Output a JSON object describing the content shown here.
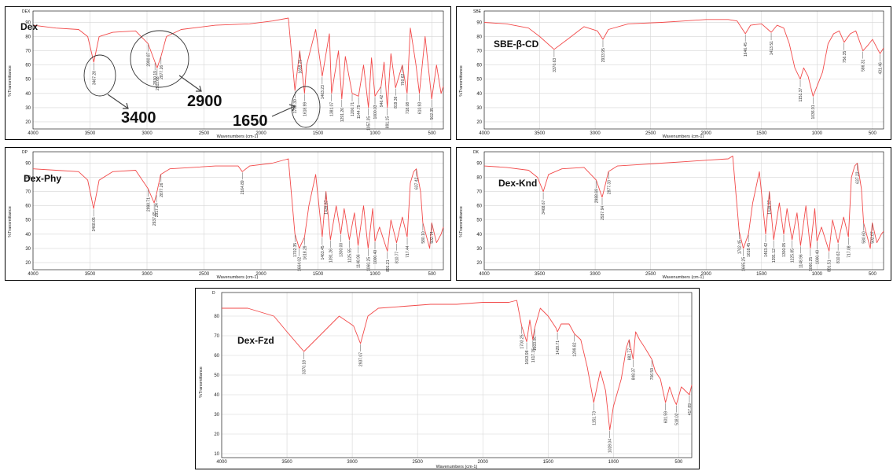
{
  "colors": {
    "spectrum": "#f24a4a",
    "frame": "#000000",
    "grid": "#d6d6d6"
  },
  "chart_data": [
    {
      "type": "line",
      "name": "Dex",
      "corner_label": "DEX",
      "xlabel": "Wavenumbers (cm-1)",
      "ylabel": "%Transmittance",
      "xlim": [
        4000,
        400
      ],
      "ylim": [
        15,
        98
      ],
      "x_reversed": true,
      "xticks": [
        "4000",
        "3500",
        "3000",
        "2500",
        "2000",
        "1500",
        "1000",
        "500"
      ],
      "yticks": [
        "90",
        "80",
        "70",
        "60",
        "50",
        "40",
        "30",
        "20"
      ],
      "grid": true,
      "x": [
        4000,
        3800,
        3600,
        3520,
        3467,
        3420,
        3300,
        3100,
        2990,
        2930,
        2911,
        2877,
        2830,
        2700,
        2400,
        2100,
        1900,
        1760,
        1702,
        1660,
        1618,
        1600,
        1520,
        1463,
        1400,
        1381,
        1320,
        1291,
        1260,
        1200,
        1144,
        1100,
        1057,
        1030,
        1000,
        946,
        920,
        892,
        860,
        819,
        760,
        718,
        690,
        640,
        610,
        560,
        502,
        460,
        420,
        400
      ],
      "y": [
        88,
        86,
        85,
        80,
        62,
        80,
        83,
        84,
        75,
        62,
        58,
        66,
        80,
        85,
        88,
        89,
        91,
        93,
        42,
        70,
        40,
        60,
        85,
        52,
        82,
        40,
        70,
        36,
        66,
        40,
        38,
        60,
        30,
        65,
        38,
        45,
        62,
        30,
        68,
        44,
        60,
        40,
        86,
        60,
        40,
        80,
        36,
        60,
        40,
        45
      ],
      "peaks": [
        {
          "x": 3467,
          "label": "3467.28"
        },
        {
          "x": 2990,
          "label": "2990.87"
        },
        {
          "x": 2930,
          "label": "2930.19"
        },
        {
          "x": 2911,
          "label": "2911.68"
        },
        {
          "x": 2877,
          "label": "2877.26"
        },
        {
          "x": 1702,
          "label": "1702.30"
        },
        {
          "x": 1660,
          "label": "1659.25"
        },
        {
          "x": 1618,
          "label": "1618.99"
        },
        {
          "x": 1463,
          "label": "1463.23"
        },
        {
          "x": 1381,
          "label": "1381.07"
        },
        {
          "x": 1291,
          "label": "1291.26"
        },
        {
          "x": 1200,
          "label": "1200.71"
        },
        {
          "x": 1144,
          "label": "1144.79"
        },
        {
          "x": 1057,
          "label": "1057.35"
        },
        {
          "x": 1000,
          "label": "1000.03"
        },
        {
          "x": 946,
          "label": "946.42"
        },
        {
          "x": 892,
          "label": "891.15"
        },
        {
          "x": 819,
          "label": "819.36"
        },
        {
          "x": 760,
          "label": "760.62"
        },
        {
          "x": 718,
          "label": "718.08"
        },
        {
          "x": 610,
          "label": "610.93"
        },
        {
          "x": 502,
          "label": "502.35"
        }
      ],
      "annotations": [
        "3400",
        "2900",
        "1650"
      ]
    },
    {
      "type": "line",
      "name": "SBE-β-CD",
      "corner_label": "SBE",
      "xlabel": "Wavenumbers (cm-1)",
      "ylabel": "%Transmittance",
      "xlim": [
        4000,
        400
      ],
      "ylim": [
        15,
        98
      ],
      "x_reversed": true,
      "xticks": [
        "4000",
        "3500",
        "3000",
        "2500",
        "2000",
        "1500",
        "1000",
        "500"
      ],
      "yticks": [
        "90",
        "80",
        "70",
        "60",
        "50",
        "40",
        "30",
        "20"
      ],
      "grid": true,
      "x": [
        4000,
        3800,
        3600,
        3500,
        3370,
        3250,
        3100,
        2980,
        2930,
        2880,
        2700,
        2400,
        2200,
        2000,
        1800,
        1720,
        1646,
        1600,
        1500,
        1413,
        1360,
        1300,
        1250,
        1200,
        1151,
        1120,
        1080,
        1036,
        1000,
        950,
        900,
        850,
        800,
        756,
        700,
        650,
        586,
        540,
        500,
        432,
        400
      ],
      "y": [
        90,
        89,
        86,
        80,
        71,
        78,
        87,
        84,
        78,
        85,
        89,
        90,
        91,
        92,
        92,
        91,
        82,
        88,
        89,
        83,
        88,
        86,
        75,
        58,
        50,
        58,
        52,
        38,
        45,
        55,
        75,
        82,
        84,
        76,
        82,
        84,
        70,
        74,
        78,
        68,
        72
      ],
      "peaks": [
        {
          "x": 3370,
          "label": "3370.63"
        },
        {
          "x": 2930,
          "label": "2933.95"
        },
        {
          "x": 1646,
          "label": "1646.45"
        },
        {
          "x": 1413,
          "label": "1413.51"
        },
        {
          "x": 1151,
          "label": "1151.37"
        },
        {
          "x": 1036,
          "label": "1036.91"
        },
        {
          "x": 756,
          "label": "756.35"
        },
        {
          "x": 586,
          "label": "586.31"
        },
        {
          "x": 432,
          "label": "431.46"
        }
      ]
    },
    {
      "type": "line",
      "name": "Dex-Phy",
      "corner_label": "DP",
      "xlabel": "Wavenumbers (cm-1)",
      "ylabel": "%Transmittance",
      "xlim": [
        4000,
        400
      ],
      "ylim": [
        15,
        98
      ],
      "x_reversed": true,
      "xticks": [
        "4000",
        "3500",
        "3000",
        "2500",
        "2000",
        "1500",
        "1000",
        "500"
      ],
      "yticks": [
        "90",
        "80",
        "70",
        "60",
        "50",
        "40",
        "30",
        "20"
      ],
      "grid": true,
      "x": [
        4000,
        3800,
        3600,
        3520,
        3468,
        3420,
        3300,
        3100,
        2990,
        2937,
        2917,
        2880,
        2800,
        2600,
        2400,
        2200,
        2164,
        2100,
        1900,
        1760,
        1702,
        1664,
        1618,
        1580,
        1520,
        1463,
        1430,
        1391,
        1340,
        1300,
        1270,
        1225,
        1180,
        1148,
        1100,
        1060,
        1020,
        1000,
        960,
        891,
        860,
        810,
        760,
        717,
        690,
        660,
        637,
        600,
        580,
        520,
        502,
        460,
        420,
        400
      ],
      "y": [
        86,
        85,
        84,
        78,
        58,
        78,
        84,
        85,
        72,
        62,
        68,
        82,
        86,
        87,
        88,
        88,
        84,
        88,
        90,
        93,
        40,
        30,
        38,
        60,
        82,
        38,
        70,
        36,
        60,
        40,
        58,
        36,
        55,
        32,
        60,
        30,
        58,
        35,
        45,
        28,
        50,
        34,
        52,
        38,
        76,
        84,
        86,
        70,
        48,
        30,
        48,
        34,
        40,
        45
      ],
      "peaks": [
        {
          "x": 3468,
          "label": "3468.05"
        },
        {
          "x": 2990,
          "label": "2990.71"
        },
        {
          "x": 2937,
          "label": "2937.65"
        },
        {
          "x": 2917,
          "label": "2917.24"
        },
        {
          "x": 2877,
          "label": "2877.26"
        },
        {
          "x": 2164,
          "label": "2164.89"
        },
        {
          "x": 1702,
          "label": "1702.35"
        },
        {
          "x": 1664,
          "label": "1664.02"
        },
        {
          "x": 1618,
          "label": "1618.29"
        },
        {
          "x": 1463,
          "label": "1463.45"
        },
        {
          "x": 1430,
          "label": "1439.87"
        },
        {
          "x": 1391,
          "label": "1391.26"
        },
        {
          "x": 1300,
          "label": "1300.00"
        },
        {
          "x": 1225,
          "label": "1225.55"
        },
        {
          "x": 1148,
          "label": "1148.96"
        },
        {
          "x": 1060,
          "label": "1060.25"
        },
        {
          "x": 1000,
          "label": "1000.40"
        },
        {
          "x": 891,
          "label": "891.21"
        },
        {
          "x": 810,
          "label": "810.77"
        },
        {
          "x": 717,
          "label": "717.44"
        },
        {
          "x": 637,
          "label": "637.42"
        },
        {
          "x": 580,
          "label": "580.10"
        },
        {
          "x": 502,
          "label": "502.74"
        }
      ]
    },
    {
      "type": "line",
      "name": "Dex-Knd",
      "corner_label": "DK",
      "xlabel": "Wavenumbers (cm-1)",
      "ylabel": "%Transmittance",
      "xlim": [
        4000,
        400
      ],
      "ylim": [
        15,
        98
      ],
      "x_reversed": true,
      "xticks": [
        "4000",
        "3500",
        "3000",
        "2500",
        "2000",
        "1500",
        "1000",
        "500"
      ],
      "yticks": [
        "90",
        "80",
        "70",
        "60",
        "50",
        "40",
        "30",
        "20"
      ],
      "grid": true,
      "x": [
        4000,
        3800,
        3600,
        3520,
        3468,
        3420,
        3300,
        3100,
        2990,
        2937,
        2917,
        2880,
        2800,
        2600,
        2400,
        2200,
        2000,
        1800,
        1760,
        1702,
        1664,
        1618,
        1580,
        1520,
        1463,
        1430,
        1391,
        1340,
        1300,
        1270,
        1225,
        1180,
        1148,
        1100,
        1060,
        1020,
        1000,
        960,
        891,
        860,
        810,
        760,
        717,
        690,
        660,
        637,
        600,
        580,
        520,
        502,
        460,
        420,
        400
      ],
      "y": [
        88,
        87,
        85,
        80,
        70,
        82,
        86,
        87,
        78,
        66,
        72,
        84,
        88,
        89,
        90,
        91,
        92,
        93,
        95,
        42,
        30,
        40,
        62,
        84,
        40,
        70,
        36,
        62,
        40,
        58,
        36,
        55,
        32,
        60,
        30,
        58,
        35,
        45,
        28,
        50,
        34,
        52,
        38,
        80,
        88,
        90,
        72,
        48,
        30,
        48,
        34,
        40,
        42
      ],
      "peaks": [
        {
          "x": 3468,
          "label": "3468.67"
        },
        {
          "x": 2990,
          "label": "2988.69"
        },
        {
          "x": 2937,
          "label": "2937.94"
        },
        {
          "x": 2877,
          "label": "2877.33"
        },
        {
          "x": 1702,
          "label": "1702.45"
        },
        {
          "x": 1664,
          "label": "1665.25"
        },
        {
          "x": 1618,
          "label": "1618.45"
        },
        {
          "x": 1463,
          "label": "1463.42"
        },
        {
          "x": 1430,
          "label": "1439.57"
        },
        {
          "x": 1391,
          "label": "1391.12"
        },
        {
          "x": 1300,
          "label": "1300.05"
        },
        {
          "x": 1225,
          "label": "1225.85"
        },
        {
          "x": 1148,
          "label": "1148.96"
        },
        {
          "x": 1060,
          "label": "1060.25"
        },
        {
          "x": 1000,
          "label": "1000.40"
        },
        {
          "x": 891,
          "label": "891.51"
        },
        {
          "x": 810,
          "label": "810.63"
        },
        {
          "x": 717,
          "label": "717.08"
        },
        {
          "x": 637,
          "label": "637.23"
        },
        {
          "x": 580,
          "label": "580.60"
        },
        {
          "x": 502,
          "label": "502.07"
        }
      ]
    },
    {
      "type": "line",
      "name": "Dex-Fzd",
      "corner_label": "D",
      "xlabel": "Wavenumbers (cm-1)",
      "ylabel": "%Transmittance",
      "xlim": [
        4000,
        400
      ],
      "ylim": [
        8,
        92
      ],
      "x_reversed": true,
      "xticks": [
        "4000",
        "3500",
        "3000",
        "2500",
        "2000",
        "1500",
        "1000",
        "500"
      ],
      "yticks": [
        "80",
        "70",
        "60",
        "50",
        "40",
        "30",
        "20",
        "10"
      ],
      "grid": true,
      "x": [
        4000,
        3800,
        3600,
        3500,
        3370,
        3250,
        3100,
        2990,
        2937,
        2880,
        2800,
        2600,
        2400,
        2200,
        2000,
        1800,
        1740,
        1703,
        1664,
        1640,
        1617,
        1603,
        1560,
        1500,
        1440,
        1429,
        1400,
        1340,
        1299,
        1250,
        1200,
        1151,
        1100,
        1060,
        1028,
        1000,
        940,
        900,
        880,
        849,
        830,
        800,
        760,
        706,
        680,
        640,
        601,
        570,
        540,
        518,
        480,
        418,
        400
      ],
      "y": [
        84,
        84,
        80,
        72,
        62,
        70,
        80,
        75,
        66,
        80,
        84,
        85,
        86,
        86,
        87,
        87,
        88,
        75,
        67,
        78,
        68,
        74,
        84,
        80,
        74,
        72,
        76,
        76,
        71,
        68,
        54,
        36,
        52,
        42,
        22,
        34,
        48,
        64,
        68,
        58,
        72,
        68,
        64,
        58,
        52,
        48,
        36,
        44,
        38,
        35,
        44,
        40,
        45
      ],
      "peaks": [
        {
          "x": 3370,
          "label": "3370.18"
        },
        {
          "x": 2937,
          "label": "2937.07"
        },
        {
          "x": 1703,
          "label": "1703.25"
        },
        {
          "x": 1664,
          "label": "1663.98"
        },
        {
          "x": 1617,
          "label": "1617.15"
        },
        {
          "x": 1603,
          "label": "1603.06"
        },
        {
          "x": 1429,
          "label": "1428.71"
        },
        {
          "x": 1299,
          "label": "1299.82"
        },
        {
          "x": 1151,
          "label": "1151.73"
        },
        {
          "x": 1028,
          "label": "1028.04"
        },
        {
          "x": 880,
          "label": "882.77"
        },
        {
          "x": 849,
          "label": "848.37"
        },
        {
          "x": 706,
          "label": "706.59"
        },
        {
          "x": 601,
          "label": "601.59"
        },
        {
          "x": 518,
          "label": "518.02"
        },
        {
          "x": 418,
          "label": "417.89"
        }
      ]
    }
  ]
}
